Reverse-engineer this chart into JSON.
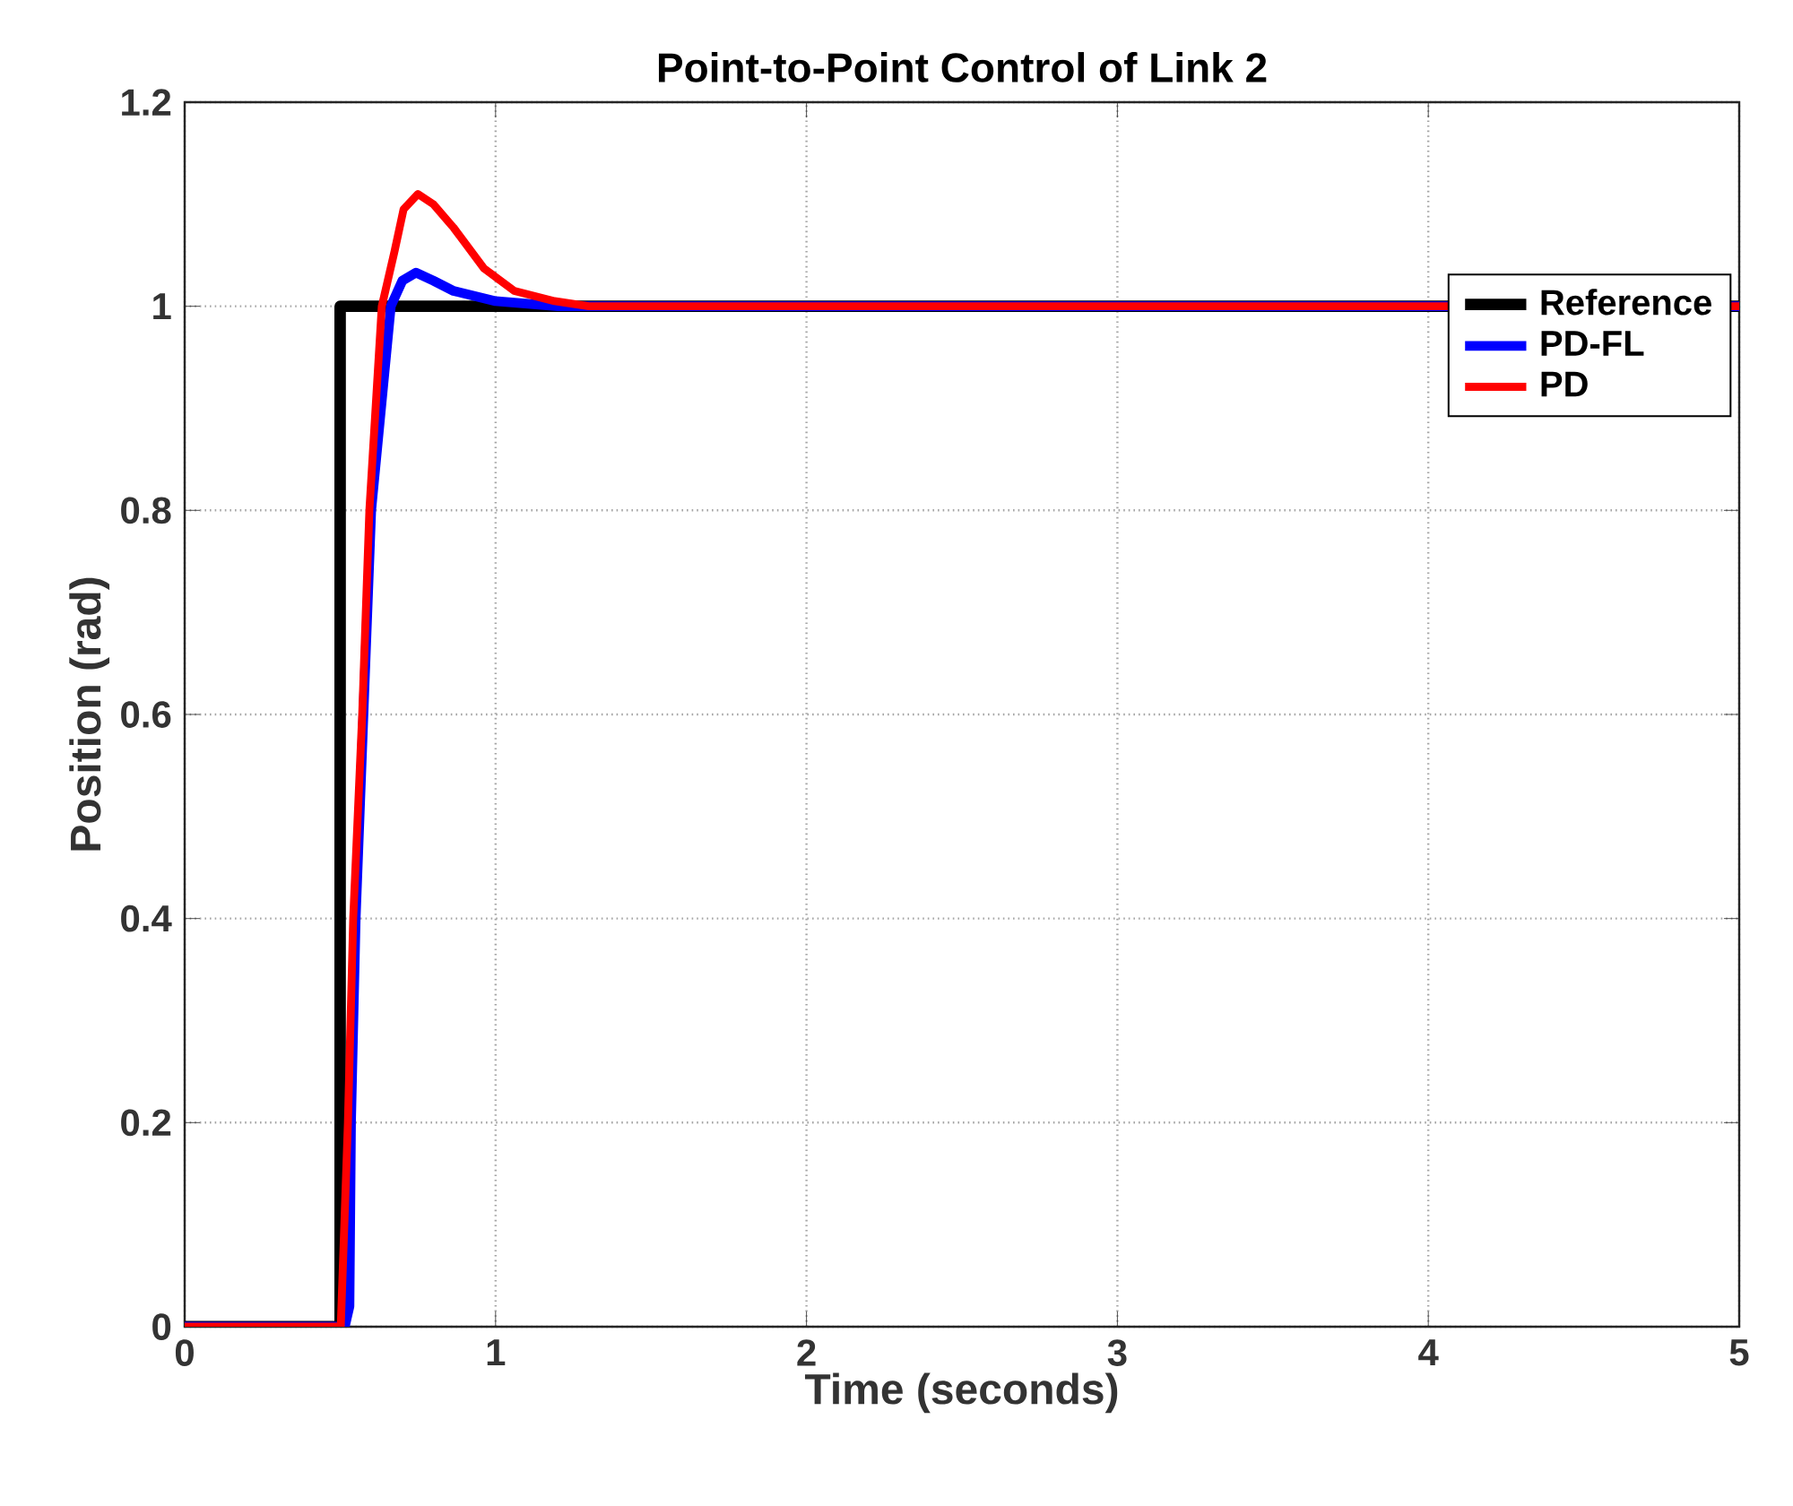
{
  "chart_data": {
    "type": "line",
    "title": "Point-to-Point Control of Link 2",
    "xlabel": "Time (seconds)",
    "ylabel": "Position (rad)",
    "xlim": [
      0,
      5
    ],
    "ylim": [
      0,
      1.2
    ],
    "xticks": [
      0,
      1,
      2,
      3,
      4,
      5
    ],
    "yticks": [
      0,
      0.2,
      0.4,
      0.6,
      0.8,
      1,
      1.2
    ],
    "grid": true,
    "legend": "top right",
    "marker": "none",
    "line_style": "solid",
    "series": [
      {
        "name": "Reference",
        "color": "#000000",
        "x": [
          0,
          0.5,
          0.5,
          5
        ],
        "values": [
          0,
          0,
          1,
          1
        ]
      },
      {
        "name": "PD-FL",
        "color": "#0000ff",
        "x": [
          0,
          0.515,
          0.53,
          0.535,
          0.55,
          0.575,
          0.6,
          0.663,
          0.7,
          0.744,
          0.8,
          0.865,
          1.0,
          1.2,
          5
        ],
        "values": [
          0,
          0,
          0.02,
          0.2,
          0.4,
          0.6,
          0.8,
          1,
          1.025,
          1.033,
          1.025,
          1.015,
          1.005,
          1.0,
          1.0
        ]
      },
      {
        "name": "PD",
        "color": "#ff0000",
        "x": [
          0,
          0.502,
          0.525,
          0.542,
          0.571,
          0.594,
          0.634,
          0.675,
          0.704,
          0.75,
          0.8,
          0.865,
          0.963,
          1.06,
          1.19,
          1.3,
          5
        ],
        "values": [
          0,
          0,
          0.2,
          0.4,
          0.6,
          0.8,
          1,
          1.054,
          1.095,
          1.11,
          1.1,
          1.077,
          1.037,
          1.015,
          1.005,
          1.0,
          1.0
        ]
      }
    ]
  }
}
